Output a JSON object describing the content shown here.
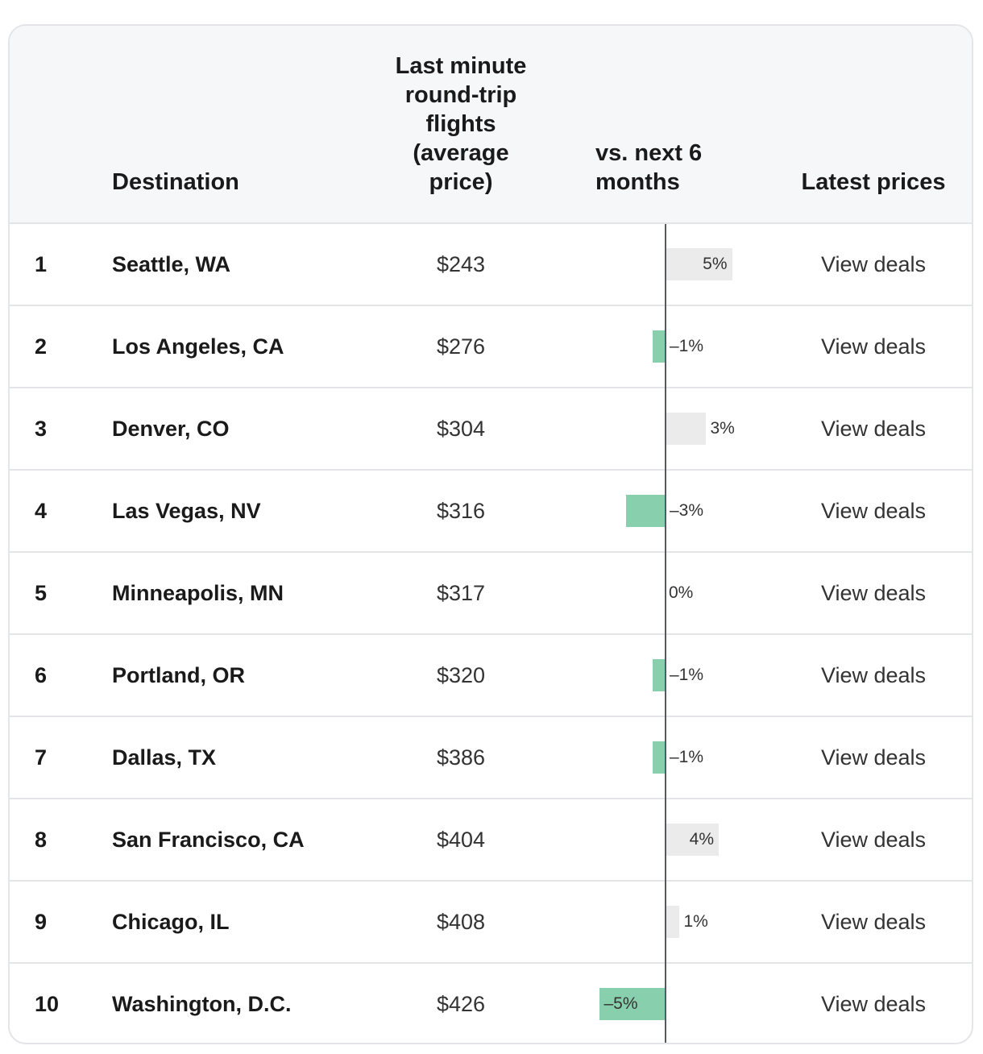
{
  "table": {
    "headers": {
      "destination": "Destination",
      "price": "Last minute round-trip flights (average price)",
      "change": "vs. next 6 months",
      "latest": "Latest prices"
    },
    "colors": {
      "positive_bar": "#ebebeb",
      "negative_bar": "#88d0ad",
      "axis": "#555a60",
      "header_bg": "#f6f7f9"
    },
    "rows": [
      {
        "rank": "1",
        "destination": "Seattle, WA",
        "price": "$243",
        "change": 5,
        "change_label": "5%",
        "link": "View deals"
      },
      {
        "rank": "2",
        "destination": "Los Angeles, CA",
        "price": "$276",
        "change": -1,
        "change_label": "–1%",
        "link": "View deals"
      },
      {
        "rank": "3",
        "destination": "Denver, CO",
        "price": "$304",
        "change": 3,
        "change_label": "3%",
        "link": "View deals"
      },
      {
        "rank": "4",
        "destination": "Las Vegas, NV",
        "price": "$316",
        "change": -3,
        "change_label": "–3%",
        "link": "View deals"
      },
      {
        "rank": "5",
        "destination": "Minneapolis, MN",
        "price": "$317",
        "change": 0,
        "change_label": "0%",
        "link": "View deals"
      },
      {
        "rank": "6",
        "destination": "Portland, OR",
        "price": "$320",
        "change": -1,
        "change_label": "–1%",
        "link": "View deals"
      },
      {
        "rank": "7",
        "destination": "Dallas, TX",
        "price": "$386",
        "change": -1,
        "change_label": "–1%",
        "link": "View deals"
      },
      {
        "rank": "8",
        "destination": "San Francisco, CA",
        "price": "$404",
        "change": 4,
        "change_label": "4%",
        "link": "View deals"
      },
      {
        "rank": "9",
        "destination": "Chicago, IL",
        "price": "$408",
        "change": 1,
        "change_label": "1%",
        "link": "View deals"
      },
      {
        "rank": "10",
        "destination": "Washington, D.C.",
        "price": "$426",
        "change": -5,
        "change_label": "–5%",
        "link": "View deals"
      }
    ]
  }
}
